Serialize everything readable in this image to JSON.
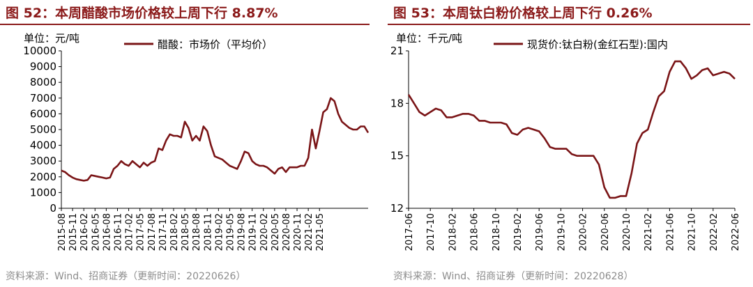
{
  "panels": [
    {
      "title": "图 52：本周醋酸市场价格较上周下行 8.87%",
      "source": "资料来源：Wind、招商证券（更新时间：20220626）"
    },
    {
      "title": "图 53：本周钛白粉价格较上周下行 0.26%",
      "source": "资料来源：Wind、招商证券（更新时间：20220628）"
    }
  ],
  "chart_data": [
    {
      "type": "line",
      "unit_label": "单位：元/吨",
      "ylim": [
        0,
        10000
      ],
      "yticks": [
        0,
        1000,
        2000,
        3000,
        4000,
        5000,
        6000,
        7000,
        8000,
        9000,
        10000
      ],
      "xlim": [
        "2015-08",
        "2022-06"
      ],
      "xticks": [
        "2015-08",
        "2015-11",
        "2016-02",
        "2016-05",
        "2016-08",
        "2016-11",
        "2017-02",
        "2017-05",
        "2017-08",
        "2017-11",
        "2018-02",
        "2018-05",
        "2018-08",
        "2018-11",
        "2019-02",
        "2019-05",
        "2019-08",
        "2019-11",
        "2020-02",
        "2020-05",
        "2020-08",
        "2020-11",
        "2021-02",
        "2021-05"
      ],
      "grid": false,
      "legend_position": "top",
      "line_color": "#7a1416",
      "series": [
        {
          "name": "醋酸：市场价（平均价）",
          "x": [
            "2015-08",
            "2015-09",
            "2015-10",
            "2015-11",
            "2015-12",
            "2016-01",
            "2016-02",
            "2016-03",
            "2016-04",
            "2016-05",
            "2016-06",
            "2016-07",
            "2016-08",
            "2016-09",
            "2016-10",
            "2016-11",
            "2016-12",
            "2017-01",
            "2017-02",
            "2017-03",
            "2017-04",
            "2017-05",
            "2017-06",
            "2017-07",
            "2017-08",
            "2017-09",
            "2017-10",
            "2017-11",
            "2017-12",
            "2018-01",
            "2018-02",
            "2018-03",
            "2018-04",
            "2018-05",
            "2018-06",
            "2018-07",
            "2018-08",
            "2018-09",
            "2018-10",
            "2018-11",
            "2018-12",
            "2019-01",
            "2019-02",
            "2019-03",
            "2019-04",
            "2019-05",
            "2019-06",
            "2019-07",
            "2019-08",
            "2019-09",
            "2019-10",
            "2019-11",
            "2019-12",
            "2020-01",
            "2020-02",
            "2020-03",
            "2020-04",
            "2020-05",
            "2020-06",
            "2020-07",
            "2020-08",
            "2020-09",
            "2020-10",
            "2020-11",
            "2020-12",
            "2021-01",
            "2021-02",
            "2021-03",
            "2021-04",
            "2021-05",
            "2021-06",
            "2021-07",
            "2021-08",
            "2021-09",
            "2021-10",
            "2021-11",
            "2021-12",
            "2022-01",
            "2022-02",
            "2022-03",
            "2022-04",
            "2022-05",
            "2022-06"
          ],
          "y": [
            2400,
            2300,
            2100,
            1950,
            1850,
            1800,
            1750,
            1800,
            2100,
            2050,
            2000,
            1950,
            1900,
            1950,
            2500,
            2700,
            3000,
            2800,
            2700,
            3000,
            2800,
            2600,
            2900,
            2700,
            2900,
            3000,
            3800,
            3700,
            4300,
            4700,
            4600,
            4600,
            4500,
            5500,
            5100,
            4300,
            4600,
            4300,
            5200,
            4900,
            4000,
            3300,
            3200,
            3100,
            2900,
            2700,
            2600,
            2500,
            3000,
            3600,
            3500,
            3000,
            2800,
            2700,
            2700,
            2600,
            2400,
            2200,
            2500,
            2600,
            2300,
            2600,
            2600,
            2600,
            2700,
            2700,
            3200,
            5000,
            3800,
            4900,
            6100,
            6300,
            7000,
            6800,
            6000,
            5500,
            5300,
            5100,
            5000,
            5000,
            5200,
            5200,
            4800
          ]
        }
      ]
    },
    {
      "type": "line",
      "unit_label": "单位：千元/吨",
      "ylim": [
        12,
        21
      ],
      "yticks": [
        12,
        15,
        18,
        21
      ],
      "xlim": [
        "2017-06",
        "2022-06"
      ],
      "xticks": [
        "2017-06",
        "2017-10",
        "2018-02",
        "2018-06",
        "2018-10",
        "2019-02",
        "2019-06",
        "2019-10",
        "2020-02",
        "2020-06",
        "2020-10",
        "2021-02",
        "2021-06",
        "2021-10",
        "2022-02",
        "2022-06"
      ],
      "grid": false,
      "legend_position": "top",
      "line_color": "#7a1416",
      "series": [
        {
          "name": "现货价:钛白粉(金红石型):国内",
          "x": [
            "2017-06",
            "2017-07",
            "2017-08",
            "2017-09",
            "2017-10",
            "2017-11",
            "2017-12",
            "2018-01",
            "2018-02",
            "2018-03",
            "2018-04",
            "2018-05",
            "2018-06",
            "2018-07",
            "2018-08",
            "2018-09",
            "2018-10",
            "2018-11",
            "2018-12",
            "2019-01",
            "2019-02",
            "2019-03",
            "2019-04",
            "2019-05",
            "2019-06",
            "2019-07",
            "2019-08",
            "2019-09",
            "2019-10",
            "2019-11",
            "2019-12",
            "2020-01",
            "2020-02",
            "2020-03",
            "2020-04",
            "2020-05",
            "2020-06",
            "2020-07",
            "2020-08",
            "2020-09",
            "2020-10",
            "2020-11",
            "2020-12",
            "2021-01",
            "2021-02",
            "2021-03",
            "2021-04",
            "2021-05",
            "2021-06",
            "2021-07",
            "2021-08",
            "2021-09",
            "2021-10",
            "2021-11",
            "2021-12",
            "2022-01",
            "2022-02",
            "2022-03",
            "2022-04",
            "2022-05",
            "2022-06"
          ],
          "y": [
            18.5,
            18.0,
            17.5,
            17.3,
            17.5,
            17.7,
            17.6,
            17.2,
            17.2,
            17.3,
            17.4,
            17.4,
            17.3,
            17.0,
            17.0,
            16.9,
            16.9,
            16.9,
            16.8,
            16.3,
            16.2,
            16.5,
            16.6,
            16.5,
            16.4,
            16.0,
            15.5,
            15.4,
            15.4,
            15.4,
            15.1,
            15.0,
            15.0,
            15.0,
            15.0,
            14.5,
            13.2,
            12.6,
            12.6,
            12.7,
            12.7,
            14.0,
            15.7,
            16.3,
            16.5,
            17.5,
            18.4,
            18.7,
            19.8,
            20.4,
            20.4,
            20.0,
            19.4,
            19.6,
            19.9,
            20.0,
            19.6,
            19.7,
            19.8,
            19.7,
            19.4
          ]
        }
      ]
    }
  ]
}
